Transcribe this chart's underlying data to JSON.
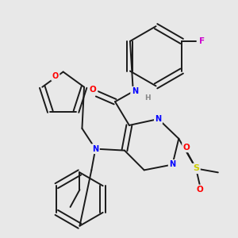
{
  "bg_color": "#e8e8e8",
  "atom_colors": {
    "N": "#0000ff",
    "O": "#ff0000",
    "F": "#cc00cc",
    "S": "#cccc00",
    "C": "#000000",
    "H": "#888888"
  },
  "bond_color": "#1a1a1a",
  "bond_width": 1.4,
  "title": ""
}
